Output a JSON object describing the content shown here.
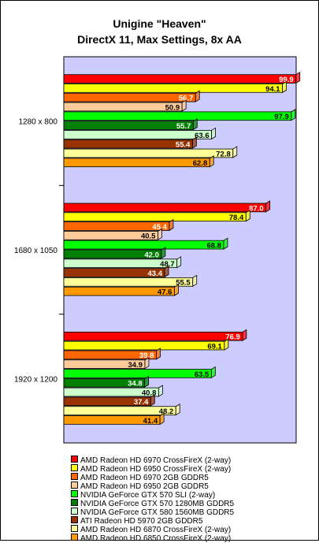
{
  "chart_data": {
    "type": "bar",
    "orientation": "horizontal",
    "title": "Unigine \"Heaven\"",
    "subtitle": "DirectX 11, Max Settings, 8x AA",
    "categories": [
      "1280 x 800",
      "1680 x 1050",
      "1920 x 1200"
    ],
    "xlim": [
      0,
      100
    ],
    "grid": false,
    "legend_position": "bottom",
    "plot_background": "#ccccff",
    "series": [
      {
        "name": "AMD Radeon HD 6970 CrossFireX (2-way)",
        "color": "#ff0000",
        "values": [
          99.9,
          87.0,
          76.9
        ]
      },
      {
        "name": "AMD Radeon HD 6950 CrossFireX (2-way)",
        "color": "#ffff00",
        "values": [
          94.1,
          78.4,
          69.1
        ]
      },
      {
        "name": "AMD Radeon HD 6970 2GB GDDR5",
        "color": "#ff6600",
        "values": [
          56.7,
          45.4,
          39.8
        ]
      },
      {
        "name": "AMD Radeon HD 6950 2GB GDDR5",
        "color": "#ffcc99",
        "values": [
          50.9,
          40.5,
          34.9
        ]
      },
      {
        "name": "NVIDIA GeForce GTX 570 SLI (2-way)",
        "color": "#00ff00",
        "values": [
          97.9,
          68.8,
          63.5
        ]
      },
      {
        "name": "NVIDIA GeForce GTX 570 1280MB GDDR5",
        "color": "#008000",
        "values": [
          55.7,
          42.0,
          34.8
        ]
      },
      {
        "name": "NVIDIA GeForce GTX 580 1560MB GDDR5",
        "color": "#ccffcc",
        "values": [
          63.6,
          48.7,
          40.8
        ]
      },
      {
        "name": "ATI Radeon HD 5970 2GB GDDR5",
        "color": "#993300",
        "values": [
          55.4,
          43.4,
          37.4
        ]
      },
      {
        "name": "AMD Radeon HD 6870 CrossFireX (2-way)",
        "color": "#ffff99",
        "values": [
          72.8,
          55.5,
          48.2
        ]
      },
      {
        "name": "AMD Radeon HD 6850 CrossFireX (2-way)",
        "color": "#ff9900",
        "values": [
          62.8,
          47.6,
          41.4
        ]
      }
    ],
    "label_colors": {
      "light": "#000000",
      "dark": "#ffffff"
    },
    "dark_series": [
      0,
      2,
      5,
      7
    ]
  }
}
